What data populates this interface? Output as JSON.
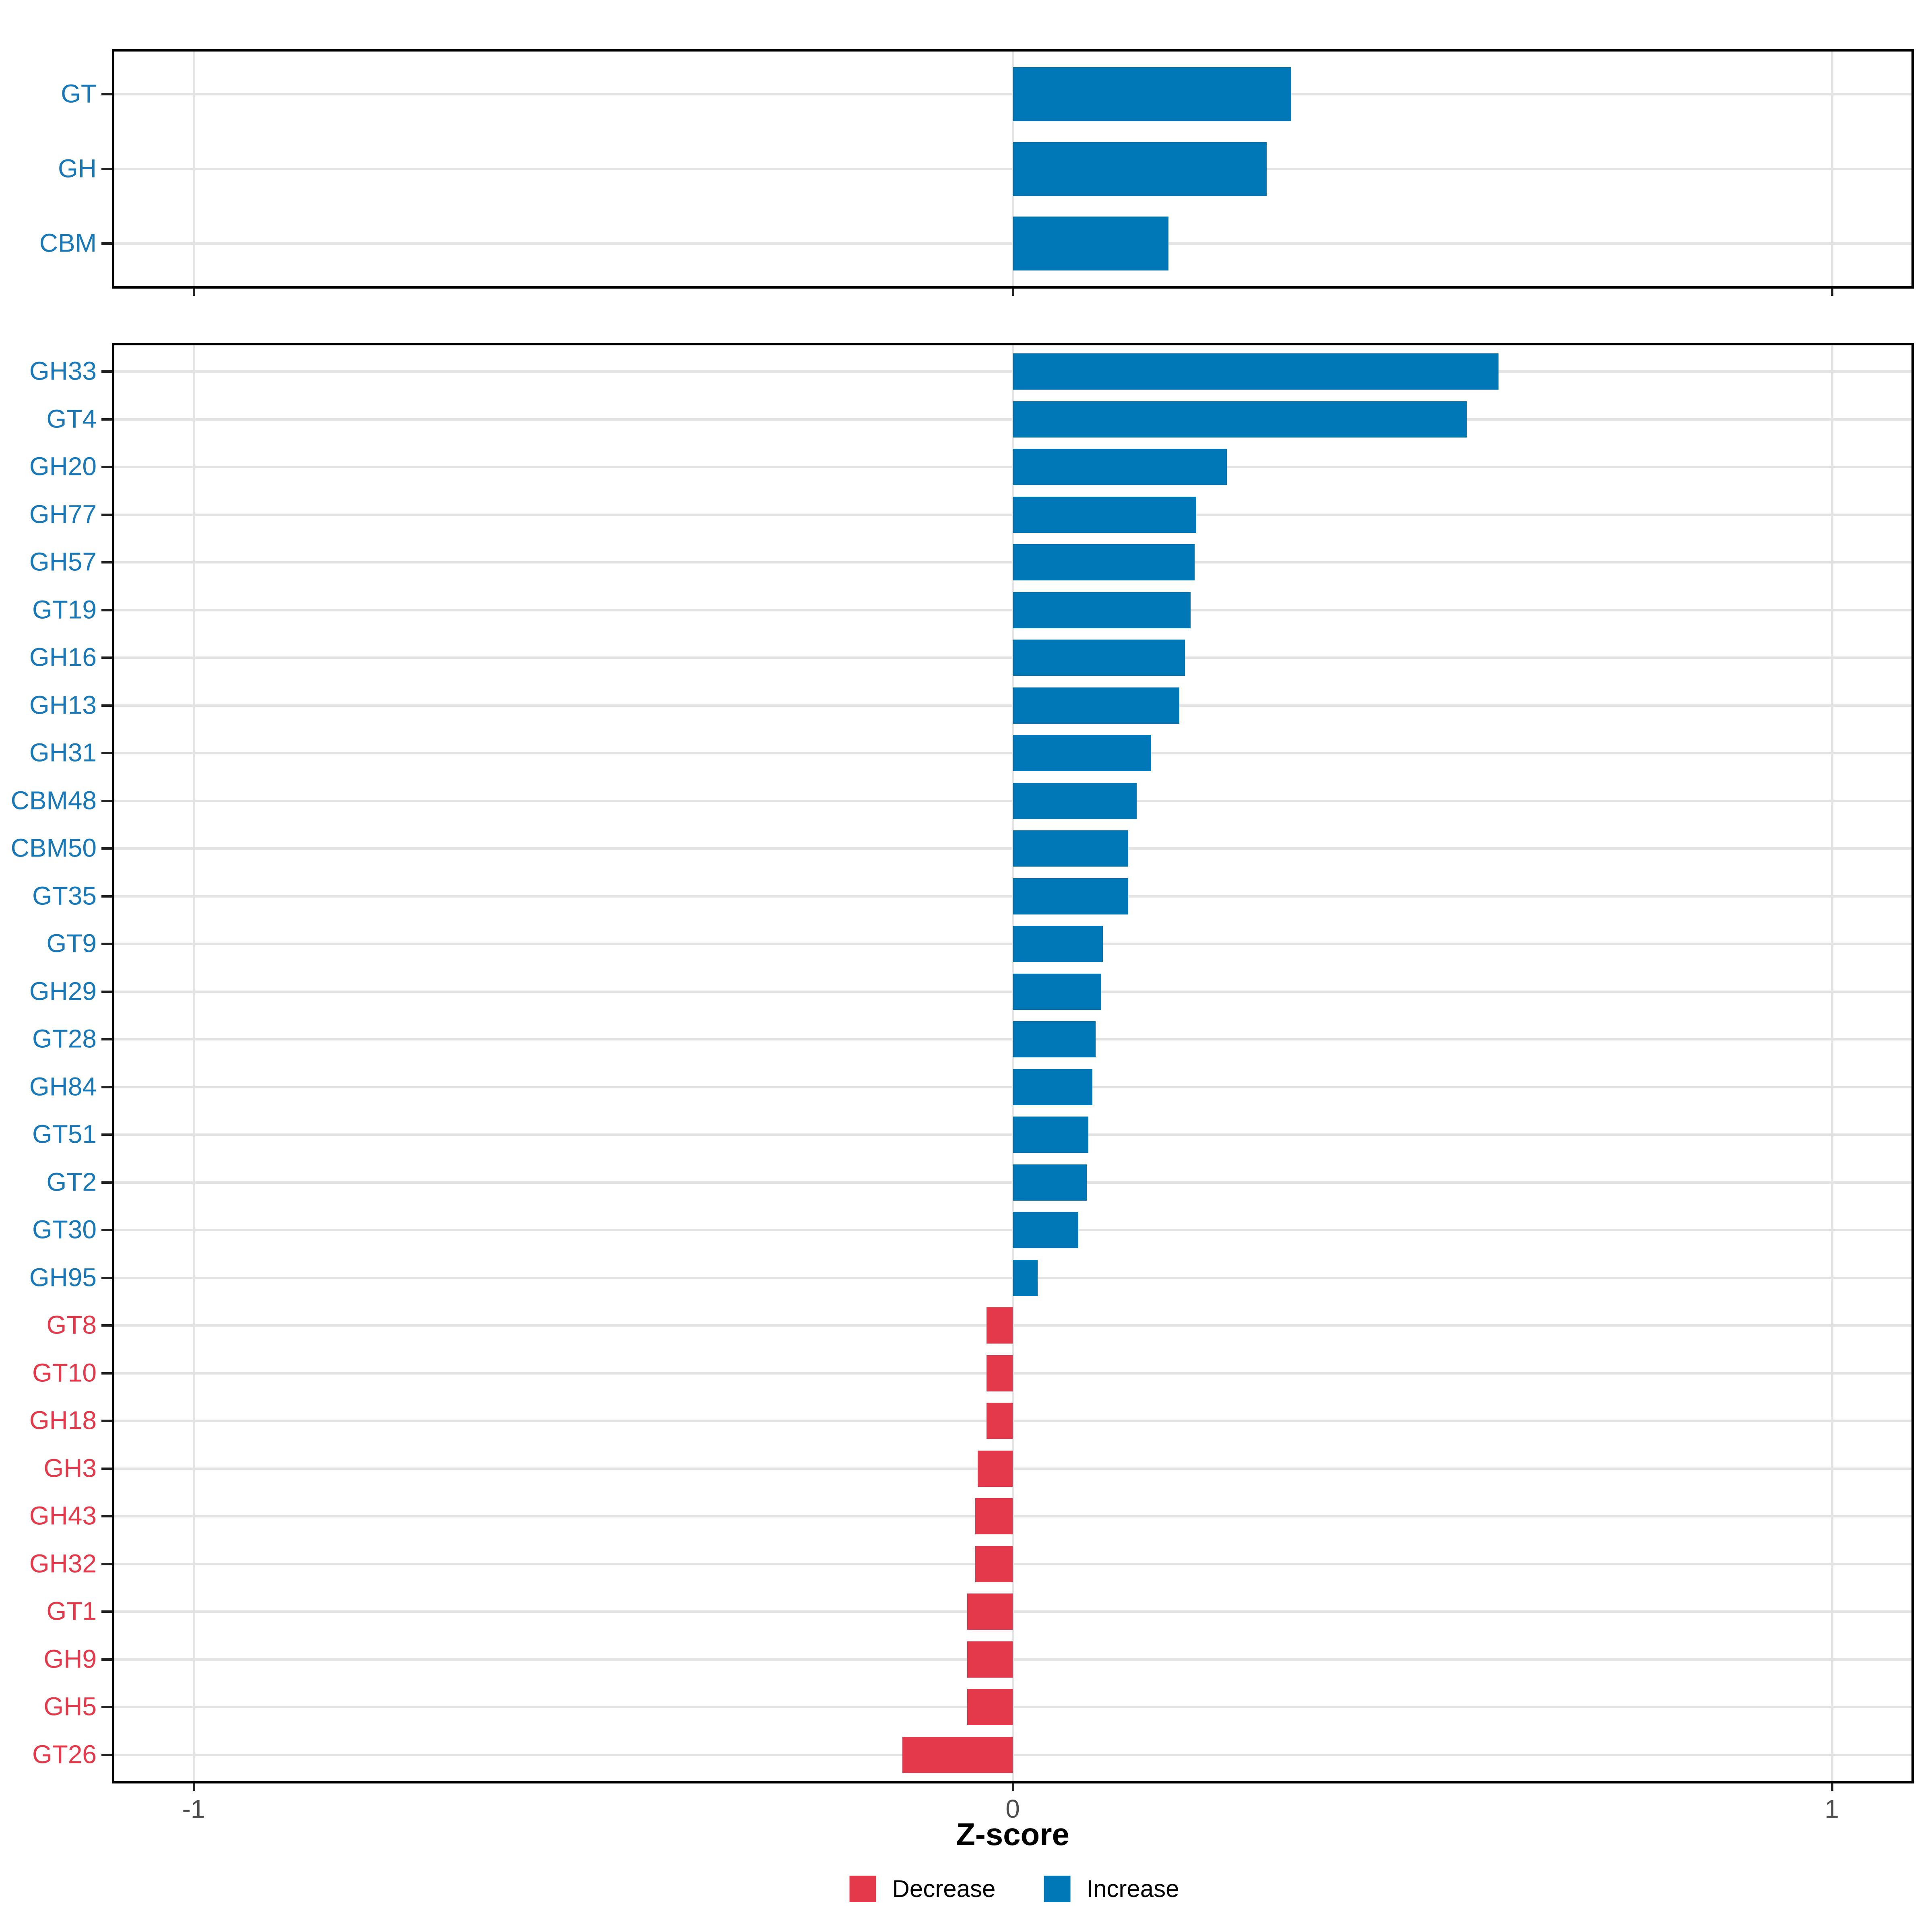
{
  "chart_data": [
    {
      "type": "bar",
      "panel": "top",
      "orientation": "horizontal",
      "title": "",
      "categories": [
        "GT",
        "GH",
        "CBM"
      ],
      "values": [
        0.34,
        0.31,
        0.19
      ],
      "directions": [
        "Increase",
        "Increase",
        "Increase"
      ],
      "xlim": [
        -1.1,
        1.1
      ],
      "grid": "on"
    },
    {
      "type": "bar",
      "panel": "bottom",
      "orientation": "horizontal",
      "title": "",
      "categories": [
        "GH33",
        "GT4",
        "GH20",
        "GH77",
        "GH57",
        "GT19",
        "GH16",
        "GH13",
        "GH31",
        "CBM48",
        "CBM50",
        "GT35",
        "GT9",
        "GH29",
        "GT28",
        "GH84",
        "GT51",
        "GT2",
        "GT30",
        "GH95",
        "GT8",
        "GT10",
        "GH18",
        "GH3",
        "GH43",
        "GH32",
        "GT1",
        "GH9",
        "GH5",
        "GT26"
      ],
      "values": [
        0.593,
        0.554,
        0.261,
        0.224,
        0.222,
        0.217,
        0.21,
        0.203,
        0.169,
        0.151,
        0.141,
        0.141,
        0.11,
        0.108,
        0.101,
        0.097,
        0.092,
        0.09,
        0.08,
        0.03,
        -0.032,
        -0.032,
        -0.032,
        -0.043,
        -0.046,
        -0.046,
        -0.056,
        -0.056,
        -0.056,
        -0.135
      ],
      "directions": [
        "Increase",
        "Increase",
        "Increase",
        "Increase",
        "Increase",
        "Increase",
        "Increase",
        "Increase",
        "Increase",
        "Increase",
        "Increase",
        "Increase",
        "Increase",
        "Increase",
        "Increase",
        "Increase",
        "Increase",
        "Increase",
        "Increase",
        "Increase",
        "Decrease",
        "Decrease",
        "Decrease",
        "Decrease",
        "Decrease",
        "Decrease",
        "Decrease",
        "Decrease",
        "Decrease",
        "Decrease"
      ],
      "xlim": [
        -1.1,
        1.1
      ],
      "grid": "on"
    }
  ],
  "axis": {
    "label": "Z-score",
    "ticks": [
      "-1",
      "0",
      "1"
    ],
    "tick_values": [
      -1,
      0,
      1
    ],
    "xlim": [
      -1.1,
      1.1
    ]
  },
  "legend": {
    "position": "bottom",
    "items": [
      {
        "label": "Decrease",
        "color": "#E4394A"
      },
      {
        "label": "Increase",
        "color": "#0077B6"
      }
    ]
  },
  "colors": {
    "increase": "#0077B6",
    "decrease": "#E4394A",
    "label_increase": "#1878B8",
    "label_decrease": "#E4394A",
    "axis_text": "#4D4D4D",
    "gridline": "#E3E3E3",
    "panel_border": "#000000"
  }
}
